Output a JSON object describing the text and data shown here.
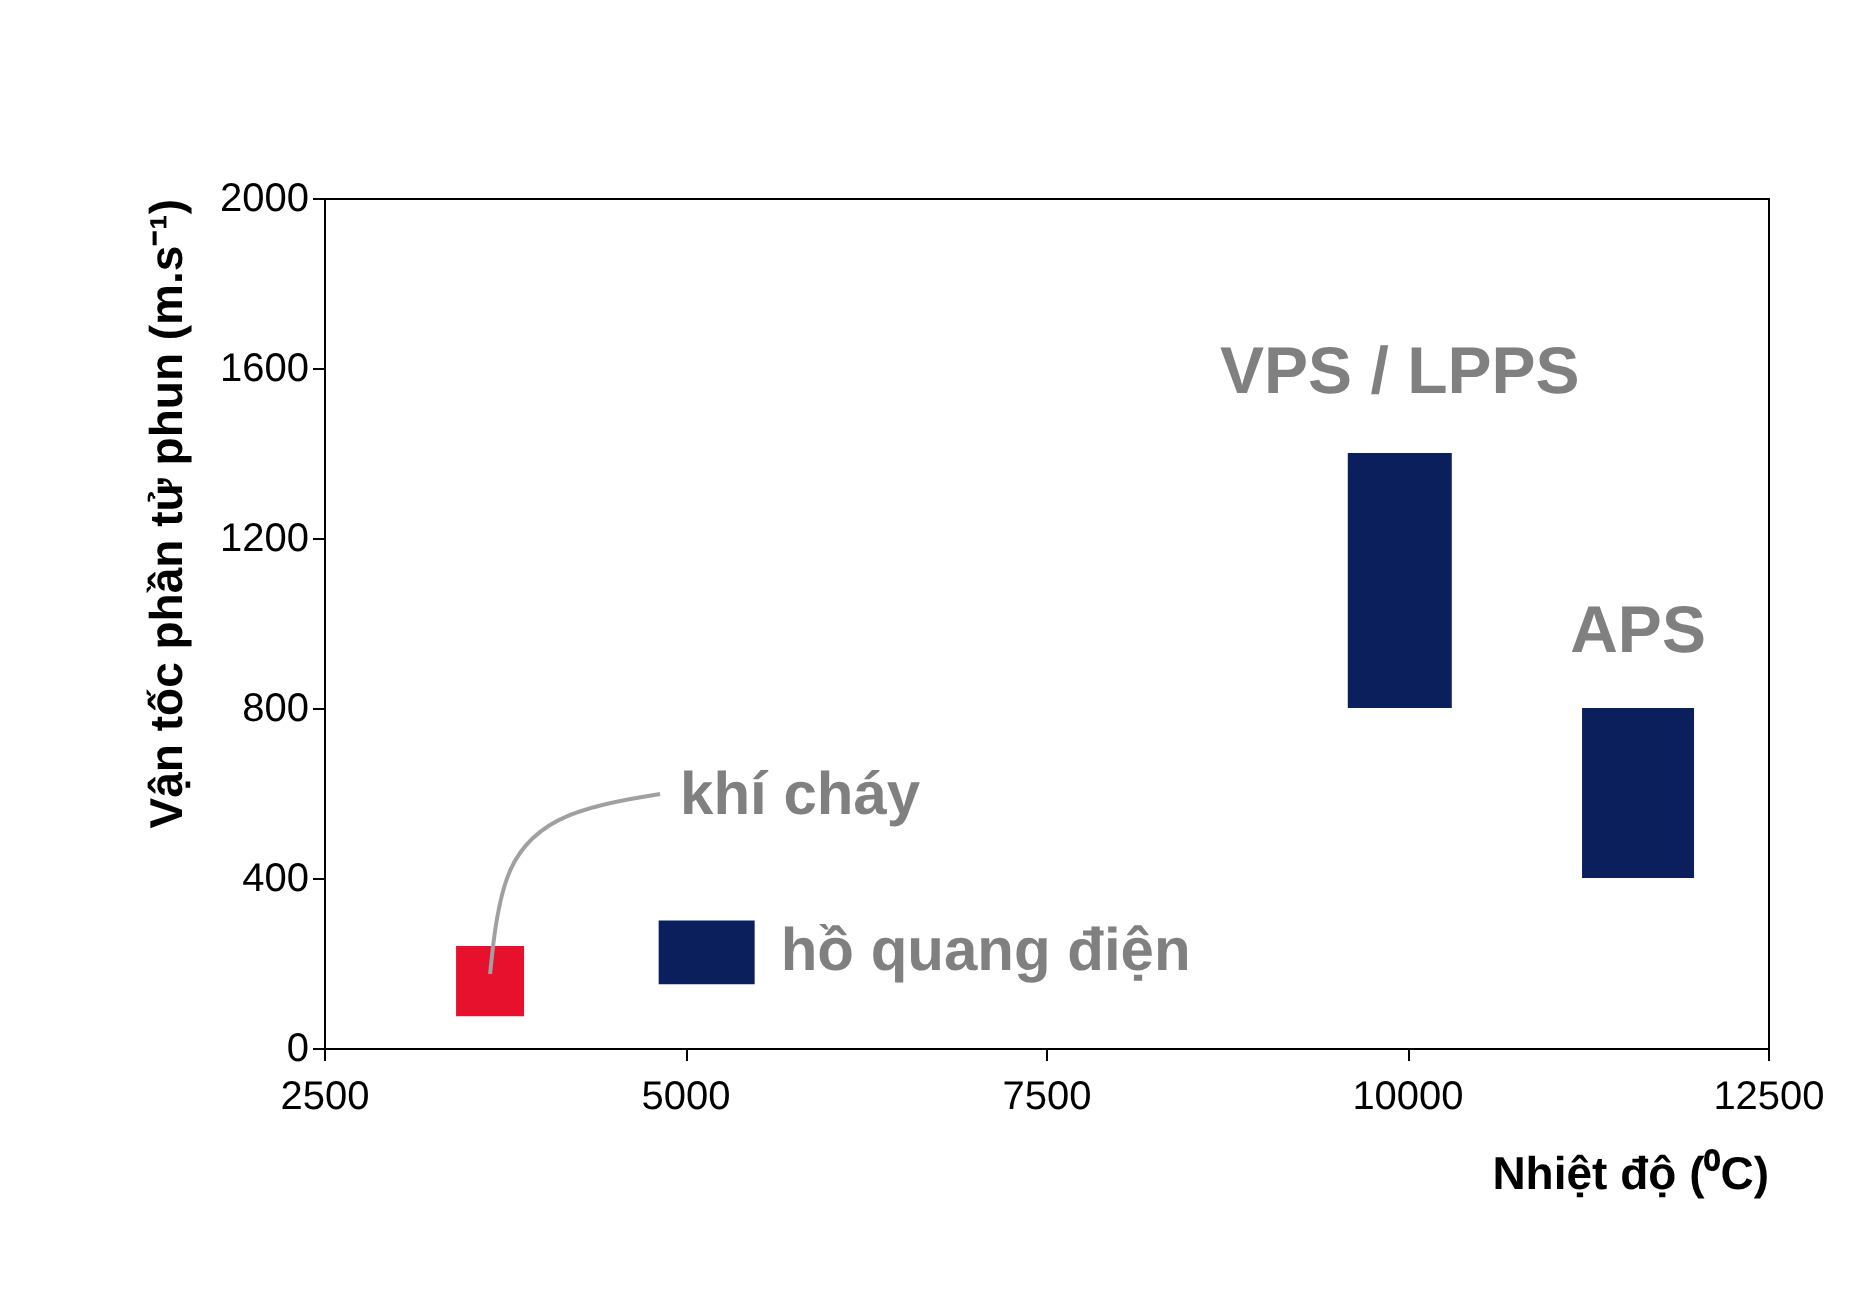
{
  "chart_data": {
    "type": "bar",
    "xlabel": "Nhiệt độ (⁰C)",
    "ylabel": "Vận tốc phần tử phun (m.s⁻¹)",
    "xlim": [
      2500,
      12500
    ],
    "xticks": [
      2500,
      5000,
      7500,
      10000,
      12500
    ],
    "ylim": [
      0,
      2000
    ],
    "yticks": [
      0,
      400,
      800,
      1200,
      1600,
      2000
    ],
    "grid": false,
    "series": [
      {
        "name": "khí cháy",
        "color": "#e8112d",
        "x": [
          3650
        ],
        "base": [
          75
        ],
        "values": [
          165
        ]
      },
      {
        "name": "hồ quang điện",
        "color": "#0a1f5c",
        "x": [
          5150
        ],
        "base": [
          150
        ],
        "values": [
          150
        ]
      },
      {
        "name": "VPS / LPPS",
        "color": "#0a1f5c",
        "x": [
          9950
        ],
        "base": [
          800
        ],
        "values": [
          600
        ]
      },
      {
        "name": "APS",
        "color": "#0a1f5c",
        "x": [
          11600
        ],
        "base": [
          400
        ],
        "values": [
          400
        ]
      }
    ]
  }
}
